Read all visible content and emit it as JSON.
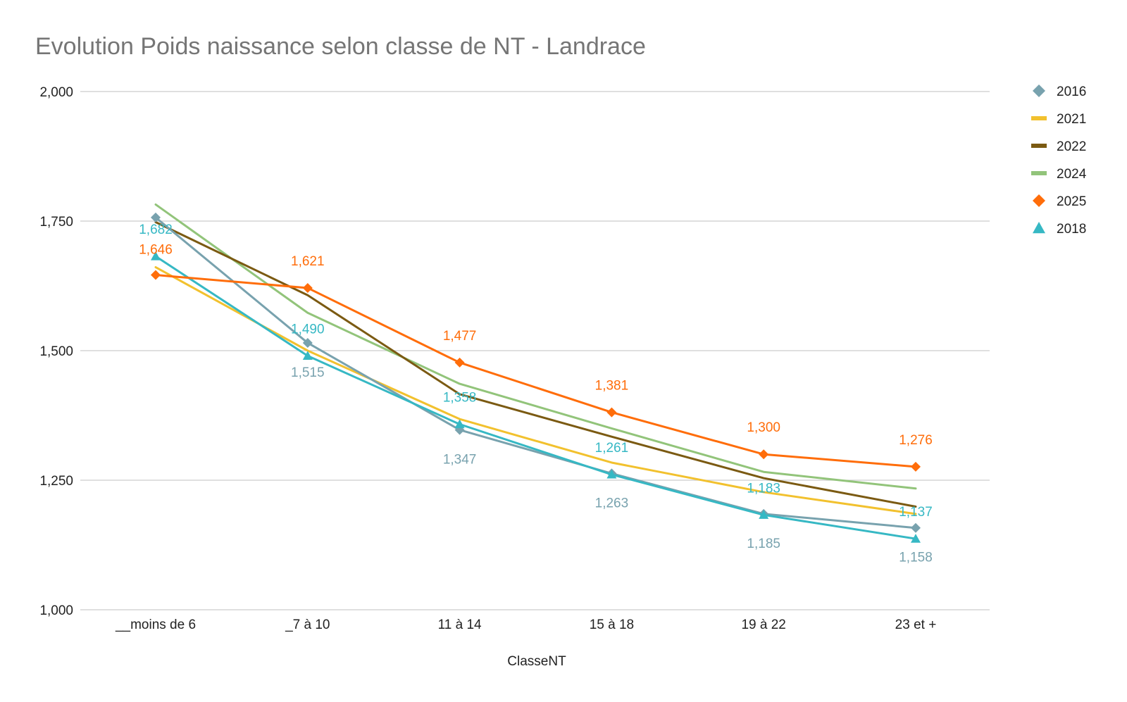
{
  "chart_data": {
    "type": "line",
    "title": "Evolution Poids naissance selon classe de NT - Landrace",
    "xlabel": "ClasseNT",
    "ylabel": "",
    "ylim": [
      1000,
      2000
    ],
    "yticks": [
      1000,
      1250,
      1500,
      1750,
      2000
    ],
    "ytick_labels": [
      "1,000",
      "1,250",
      "1,500",
      "1,750",
      "2,000"
    ],
    "grid": true,
    "legend_position": "right",
    "categories": [
      "__moins de 6",
      "_7 à 10",
      "11 à 14",
      "15 à 18",
      "19 à 22",
      "23 et +"
    ],
    "series": [
      {
        "name": "2016",
        "color": "#78a2ae",
        "marker": "diamond",
        "values": [
          1757,
          1515,
          1347,
          1263,
          1185,
          1158
        ],
        "labels": [
          "",
          "1,515",
          "1,347",
          "1,263",
          "1,185",
          "1,158"
        ]
      },
      {
        "name": "2021",
        "color": "#f2c12e",
        "marker": "none",
        "values": [
          1661,
          1500,
          1368,
          1284,
          1227,
          1185
        ],
        "labels": []
      },
      {
        "name": "2022",
        "color": "#7b5a12",
        "marker": "none",
        "values": [
          1748,
          1607,
          1416,
          1334,
          1254,
          1199
        ],
        "labels": []
      },
      {
        "name": "2024",
        "color": "#92c47a",
        "marker": "none",
        "values": [
          1782,
          1573,
          1436,
          1350,
          1266,
          1234
        ],
        "labels": []
      },
      {
        "name": "2025",
        "color": "#ff6d0a",
        "marker": "diamond",
        "values": [
          1646,
          1621,
          1477,
          1381,
          1300,
          1276
        ],
        "labels": [
          "1,646",
          "1,621",
          "1,477",
          "1,381",
          "1,300",
          "1,276"
        ]
      },
      {
        "name": "2018",
        "color": "#36b8c4",
        "marker": "triangle",
        "values": [
          1682,
          1490,
          1358,
          1261,
          1183,
          1137
        ],
        "labels": [
          "1,682",
          "1,490",
          "1,358",
          "1,261",
          "1,183",
          "1,137"
        ]
      }
    ],
    "legend": [
      {
        "name": "2016",
        "symbol": "diamond",
        "color": "#78a2ae"
      },
      {
        "name": "2021",
        "symbol": "line",
        "color": "#f2c12e"
      },
      {
        "name": "2022",
        "symbol": "line",
        "color": "#7b5a12"
      },
      {
        "name": "2024",
        "symbol": "line",
        "color": "#92c47a"
      },
      {
        "name": "2025",
        "symbol": "diamond",
        "color": "#ff6d0a"
      },
      {
        "name": "2018",
        "symbol": "triangle",
        "color": "#36b8c4"
      }
    ]
  }
}
